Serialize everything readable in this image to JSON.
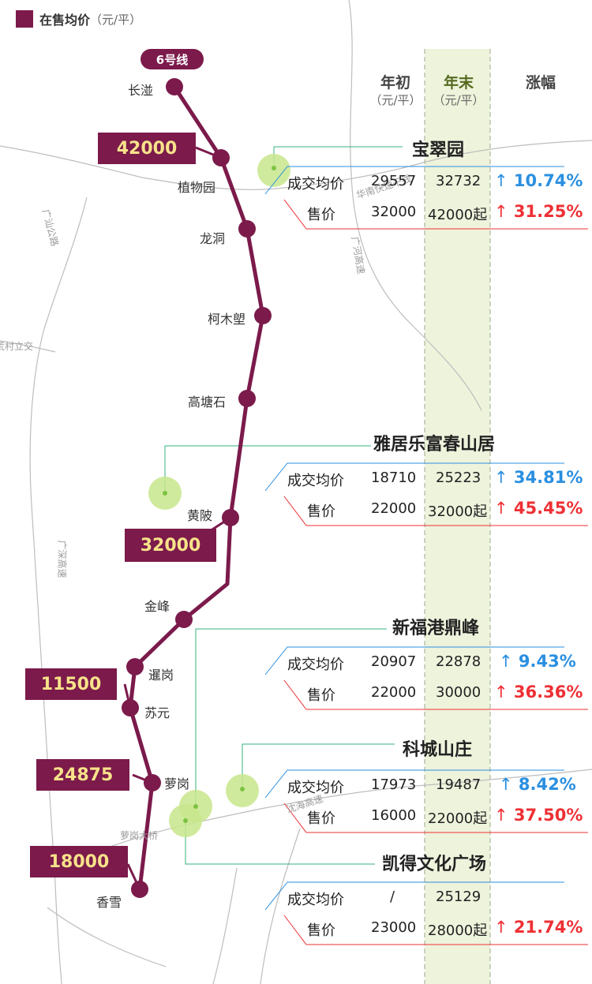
{
  "legend": {
    "label": "在售均价",
    "unit": "（元/平）",
    "color": "#7b1a4b"
  },
  "line": {
    "name": "6号线",
    "color": "#7b1a4b"
  },
  "stations": [
    "长湴",
    "植物园",
    "龙洞",
    "柯木塱",
    "高塘石",
    "黄陂",
    "金峰",
    "暹岗",
    "苏元",
    "萝岗",
    "香雪"
  ],
  "station_prices": [
    "42000",
    "32000",
    "11500",
    "24875",
    "18000"
  ],
  "roads": [
    "华南快速干线",
    "广汕公路",
    "广河高速",
    "荒村立交",
    "广深高速",
    "沈海高速",
    "萝岗大桥"
  ],
  "columns": {
    "start": "年初",
    "start_unit": "（元/平）",
    "end": "年末",
    "end_unit": "（元/平）",
    "change": "涨幅"
  },
  "projects": [
    {
      "name": "宝翠园",
      "deal_label": "成交均价",
      "deal_start": "29557",
      "deal_end": "32732",
      "deal_change": "10.74%",
      "sale_label": "售价",
      "sale_start": "32000",
      "sale_end": "42000起",
      "sale_change": "31.25%"
    },
    {
      "name": "雅居乐富春山居",
      "deal_label": "成交均价",
      "deal_start": "18710",
      "deal_end": "25223",
      "deal_change": "34.81%",
      "sale_label": "售价",
      "sale_start": "22000",
      "sale_end": "32000起",
      "sale_change": "45.45%"
    },
    {
      "name": "新福港鼎峰",
      "deal_label": "成交均价",
      "deal_start": "20907",
      "deal_end": "22878",
      "deal_change": "9.43%",
      "sale_label": "售价",
      "sale_start": "22000",
      "sale_end": "30000",
      "sale_change": "36.36%"
    },
    {
      "name": "科城山庄",
      "deal_label": "成交均价",
      "deal_start": "17973",
      "deal_end": "19487",
      "deal_change": "8.42%",
      "sale_label": "售价",
      "sale_start": "16000",
      "sale_end": "22000起",
      "sale_change": "37.50%"
    },
    {
      "name": "凯得文化广场",
      "deal_label": "成交均价",
      "deal_start": "/",
      "deal_end": "25129",
      "sale_label": "售价",
      "sale_start": "23000",
      "sale_end": "28000起",
      "sale_change": "21.74%"
    }
  ],
  "icons": {
    "up": "↑",
    "up_name": "up-arrow-icon"
  },
  "colors": {
    "up_blue": "#2a8fe0",
    "up_red": "#ee3035",
    "highlight": "#eef3dc",
    "marker": "#c8e68c",
    "leader": "#36b37e"
  }
}
